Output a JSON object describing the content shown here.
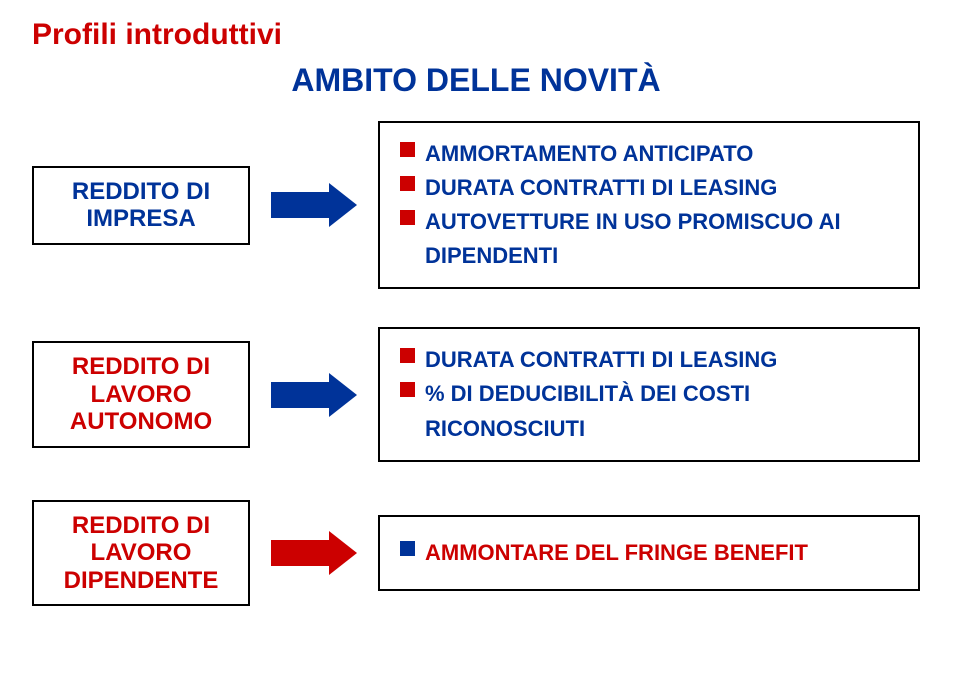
{
  "page_title": "Profili introduttivi",
  "page_title_color": "#cc0000",
  "section_title": "AMBITO DELLE NOVITÀ",
  "section_title_color": "#003399",
  "rows": [
    {
      "source_label": "REDDITO DI IMPRESA",
      "source_color": "#003399",
      "arrow_color": "#003399",
      "bullet_color": "#cc0000",
      "item_color": "#003399",
      "items": [
        "AMMORTAMENTO ANTICIPATO",
        "DURATA CONTRATTI DI LEASING",
        "AUTOVETTURE IN USO PROMISCUO AI DIPENDENTI"
      ]
    },
    {
      "source_label": "REDDITO DI LAVORO AUTONOMO",
      "source_color": "#cc0000",
      "arrow_color": "#003399",
      "bullet_color": "#cc0000",
      "item_color": "#003399",
      "items": [
        "DURATA CONTRATTI DI LEASING",
        "% DI DEDUCIBILITÀ DEI COSTI RICONOSCIUTI"
      ]
    },
    {
      "source_label": "REDDITO DI LAVORO DIPENDENTE",
      "source_color": "#cc0000",
      "arrow_color": "#cc0000",
      "bullet_color": "#003399",
      "item_color": "#cc0000",
      "items": [
        "AMMONTARE DEL FRINGE BENEFIT"
      ]
    }
  ]
}
